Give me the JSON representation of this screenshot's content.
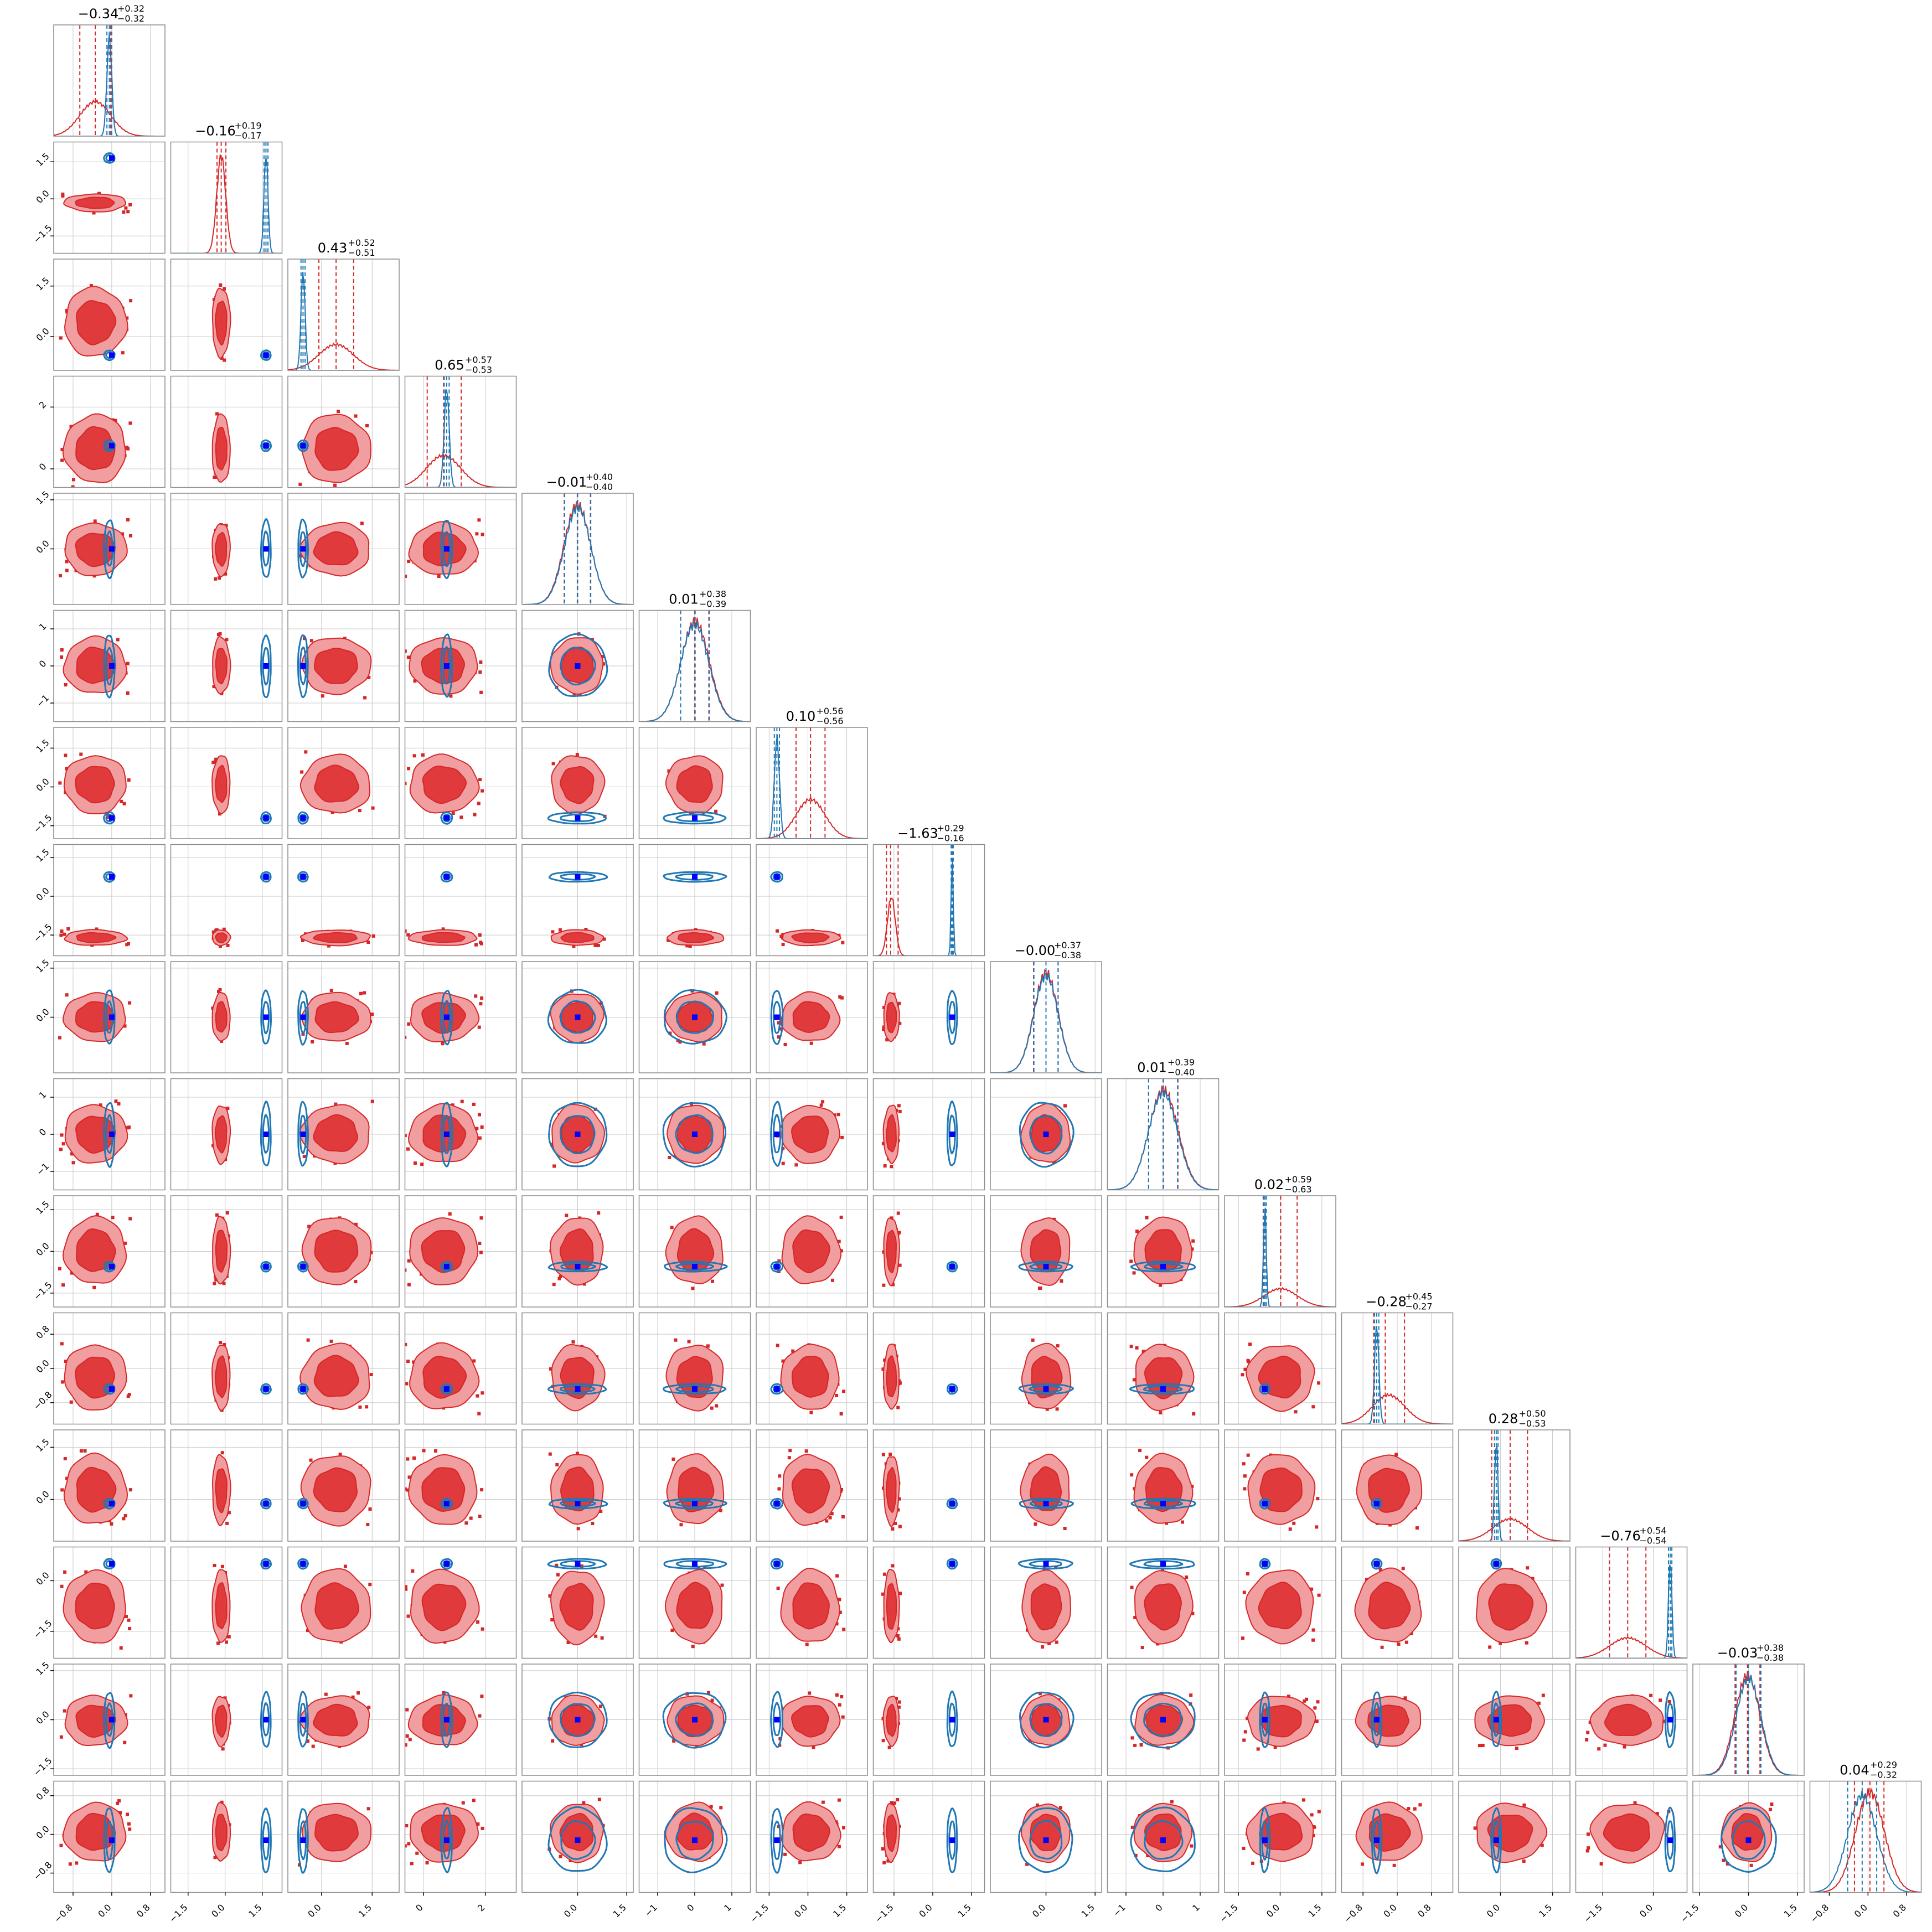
{
  "chart_data": {
    "type": "corner",
    "n_params": 16,
    "colors": {
      "red_dist": "#d62728",
      "red_fill_outer": "#f09ea0",
      "red_fill_inner": "#e03a3c",
      "blue_dist": "#1f77b4",
      "truth_marker": "#0000ff",
      "grid": "#c8c8c8",
      "frame": "#8c8c8c"
    },
    "grid": true,
    "params": [
      {
        "title_main": "−0.34",
        "title_plus": "+0.32",
        "title_minus": "−0.32",
        "range": [
          -1.2,
          1.1
        ],
        "ticks": [
          -0.8,
          0.0,
          0.8
        ],
        "tick_labels": [
          "−0.8",
          "0.0",
          "0.8"
        ],
        "red": {
          "mean": -0.34,
          "sd": 0.32
        },
        "blue": {
          "mean": -0.05,
          "sd": 0.05
        },
        "truth": 0.0,
        "quantiles": [
          -0.66,
          -0.34,
          -0.02
        ]
      },
      {
        "title_main": "−0.16",
        "title_plus": "+0.19",
        "title_minus": "−0.17",
        "range": [
          -2.2,
          2.3
        ],
        "ticks": [
          -1.5,
          0.0,
          1.5
        ],
        "tick_labels": [
          "−1.5",
          "0.0",
          "1.5"
        ],
        "red": {
          "mean": -0.16,
          "sd": 0.18
        },
        "blue": {
          "mean": 1.65,
          "sd": 0.08
        },
        "truth": 1.65,
        "quantiles": [
          -0.33,
          -0.16,
          0.03
        ]
      },
      {
        "title_main": "0.43",
        "title_plus": "+0.52",
        "title_minus": "−0.51",
        "range": [
          -1.0,
          2.3
        ],
        "ticks": [
          0.0,
          1.5
        ],
        "tick_labels": [
          "0.0",
          "1.5"
        ],
        "red": {
          "mean": 0.43,
          "sd": 0.51
        },
        "blue": {
          "mean": -0.55,
          "sd": 0.06
        },
        "truth": -0.55,
        "quantiles": [
          -0.08,
          0.43,
          0.95
        ]
      },
      {
        "title_main": "0.65",
        "title_plus": "+0.57",
        "title_minus": "−0.53",
        "range": [
          -0.6,
          3.0
        ],
        "ticks": [
          0.0,
          2.0
        ],
        "tick_labels": [
          "0",
          "2"
        ],
        "red": {
          "mean": 0.65,
          "sd": 0.55
        },
        "blue": {
          "mean": 0.75,
          "sd": 0.08
        },
        "truth": 0.75,
        "quantiles": [
          0.12,
          0.65,
          1.22
        ]
      },
      {
        "title_main": "−0.01",
        "title_plus": "+0.40",
        "title_minus": "−0.40",
        "range": [
          -1.7,
          1.7
        ],
        "ticks": [
          0.0,
          1.5
        ],
        "tick_labels": [
          "0.0",
          "1.5"
        ],
        "red": {
          "mean": -0.01,
          "sd": 0.4
        },
        "blue": {
          "mean": 0.0,
          "sd": 0.4
        },
        "truth": 0.0,
        "quantiles": [
          -0.41,
          -0.01,
          0.39
        ]
      },
      {
        "title_main": "0.01",
        "title_plus": "+0.38",
        "title_minus": "−0.39",
        "range": [
          -1.5,
          1.5
        ],
        "ticks": [
          -1.0,
          0.0,
          1.0
        ],
        "tick_labels": [
          "−1",
          "0",
          "1"
        ],
        "red": {
          "mean": 0.01,
          "sd": 0.38
        },
        "blue": {
          "mean": 0.0,
          "sd": 0.38
        },
        "truth": 0.0,
        "quantiles": [
          -0.38,
          0.01,
          0.39
        ]
      },
      {
        "title_main": "0.10",
        "title_plus": "+0.56",
        "title_minus": "−0.56",
        "range": [
          -2.0,
          2.3
        ],
        "ticks": [
          -1.5,
          0.0,
          1.5
        ],
        "tick_labels": [
          "−1.5",
          "0.0",
          "1.5"
        ],
        "red": {
          "mean": 0.1,
          "sd": 0.56
        },
        "blue": {
          "mean": -1.2,
          "sd": 0.1
        },
        "truth": -1.2,
        "quantiles": [
          -0.46,
          0.1,
          0.66
        ]
      },
      {
        "title_main": "−1.63",
        "title_plus": "+0.29",
        "title_minus": "−0.16",
        "range": [
          -2.3,
          2.0
        ],
        "ticks": [
          -1.5,
          0.0,
          1.5
        ],
        "tick_labels": [
          "−1.5",
          "0.0",
          "1.5"
        ],
        "red": {
          "mean": -1.6,
          "sd": 0.15
        },
        "blue": {
          "mean": 0.75,
          "sd": 0.04
        },
        "truth": 0.75,
        "quantiles": [
          -1.79,
          -1.63,
          -1.34
        ]
      },
      {
        "title_main": "−0.00",
        "title_plus": "+0.37",
        "title_minus": "−0.38",
        "range": [
          -1.7,
          1.7
        ],
        "ticks": [
          0.0,
          1.5
        ],
        "tick_labels": [
          "0.0",
          "1.5"
        ],
        "red": {
          "mean": 0.0,
          "sd": 0.37
        },
        "blue": {
          "mean": 0.0,
          "sd": 0.37
        },
        "truth": 0.0,
        "quantiles": [
          -0.38,
          0.0,
          0.37
        ]
      },
      {
        "title_main": "0.01",
        "title_plus": "+0.39",
        "title_minus": "−0.40",
        "range": [
          -1.5,
          1.5
        ],
        "ticks": [
          -1.0,
          0.0,
          1.0
        ],
        "tick_labels": [
          "−1",
          "0",
          "1"
        ],
        "red": {
          "mean": 0.01,
          "sd": 0.39
        },
        "blue": {
          "mean": 0.0,
          "sd": 0.39
        },
        "truth": 0.0,
        "quantiles": [
          -0.39,
          0.01,
          0.4
        ]
      },
      {
        "title_main": "0.02",
        "title_plus": "+0.59",
        "title_minus": "−0.63",
        "range": [
          -2.0,
          2.0
        ],
        "ticks": [
          -1.5,
          0.0,
          1.5
        ],
        "tick_labels": [
          "−1.5",
          "0.0",
          "1.5"
        ],
        "red": {
          "mean": 0.02,
          "sd": 0.6
        },
        "blue": {
          "mean": -0.55,
          "sd": 0.05
        },
        "truth": -0.55,
        "quantiles": [
          -0.61,
          0.02,
          0.61
        ]
      },
      {
        "title_main": "−0.28",
        "title_plus": "+0.45",
        "title_minus": "−0.27",
        "range": [
          -1.3,
          1.3
        ],
        "ticks": [
          -0.8,
          0.0,
          0.8
        ],
        "tick_labels": [
          "−0.8",
          "0.0",
          "0.8"
        ],
        "red": {
          "mean": -0.2,
          "sd": 0.38
        },
        "blue": {
          "mean": -0.48,
          "sd": 0.05
        },
        "truth": -0.48,
        "quantiles": [
          -0.55,
          -0.28,
          0.17
        ]
      },
      {
        "title_main": "0.28",
        "title_plus": "+0.50",
        "title_minus": "−0.53",
        "range": [
          -1.2,
          2.0
        ],
        "ticks": [
          0.0,
          1.5
        ],
        "tick_labels": [
          "0.0",
          "1.5"
        ],
        "red": {
          "mean": 0.28,
          "sd": 0.5
        },
        "blue": {
          "mean": -0.12,
          "sd": 0.05
        },
        "truth": -0.12,
        "quantiles": [
          -0.25,
          0.28,
          0.78
        ]
      },
      {
        "title_main": "−0.76",
        "title_plus": "+0.54",
        "title_minus": "−0.54",
        "range": [
          -2.3,
          1.0
        ],
        "ticks": [
          -1.5,
          0.0
        ],
        "tick_labels": [
          "−1.5",
          "0.0"
        ],
        "red": {
          "mean": -0.76,
          "sd": 0.54
        },
        "blue": {
          "mean": 0.5,
          "sd": 0.05
        },
        "truth": 0.5,
        "quantiles": [
          -1.3,
          -0.76,
          -0.22
        ]
      },
      {
        "title_main": "−0.03",
        "title_plus": "+0.38",
        "title_minus": "−0.38",
        "range": [
          -1.7,
          1.7
        ],
        "ticks": [
          -1.5,
          0.0,
          1.5
        ],
        "tick_labels": [
          "−1.5",
          "0.0",
          "1.5"
        ],
        "red": {
          "mean": -0.03,
          "sd": 0.38
        },
        "blue": {
          "mean": 0.0,
          "sd": 0.38
        },
        "truth": 0.0,
        "quantiles": [
          -0.41,
          -0.03,
          0.35
        ]
      },
      {
        "title_main": "0.04",
        "title_plus": "+0.29",
        "title_minus": "−0.32",
        "range": [
          -1.2,
          1.1
        ],
        "ticks": [
          -0.8,
          0.0,
          0.8
        ],
        "tick_labels": [
          "−0.8",
          "0.0",
          "0.8"
        ],
        "red": {
          "mean": 0.04,
          "sd": 0.3
        },
        "blue": {
          "mean": -0.12,
          "sd": 0.3
        },
        "truth": -0.12,
        "quantiles": [
          -0.28,
          0.04,
          0.33
        ]
      }
    ]
  }
}
